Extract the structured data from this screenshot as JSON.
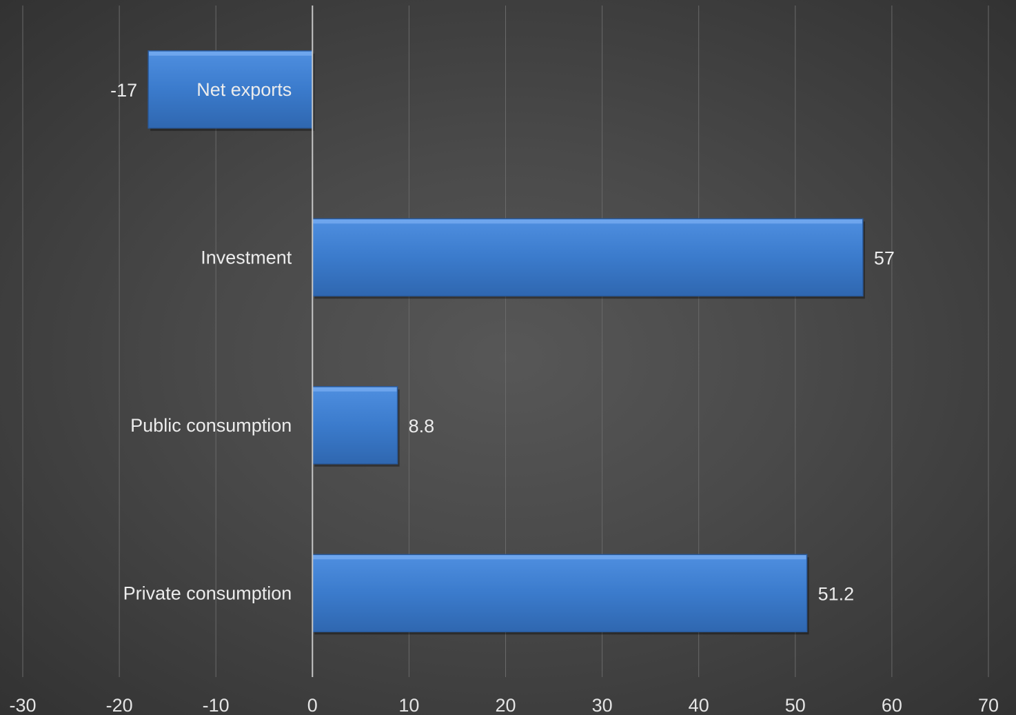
{
  "chart_data": {
    "type": "bar",
    "orientation": "horizontal",
    "categories": [
      "Net exports",
      "Investment",
      "Public consumption",
      "Private consumption"
    ],
    "values": [
      -17,
      57,
      8.8,
      51.2
    ],
    "data_labels": [
      "-17",
      "57",
      "8.8",
      "51.2"
    ],
    "xlim": [
      -30,
      70
    ],
    "xticks": [
      -30,
      -20,
      -10,
      0,
      10,
      20,
      30,
      40,
      50,
      60,
      70
    ],
    "grid": true,
    "bar_color": "#3d7dd0",
    "title": "",
    "xlabel": "",
    "ylabel": ""
  }
}
